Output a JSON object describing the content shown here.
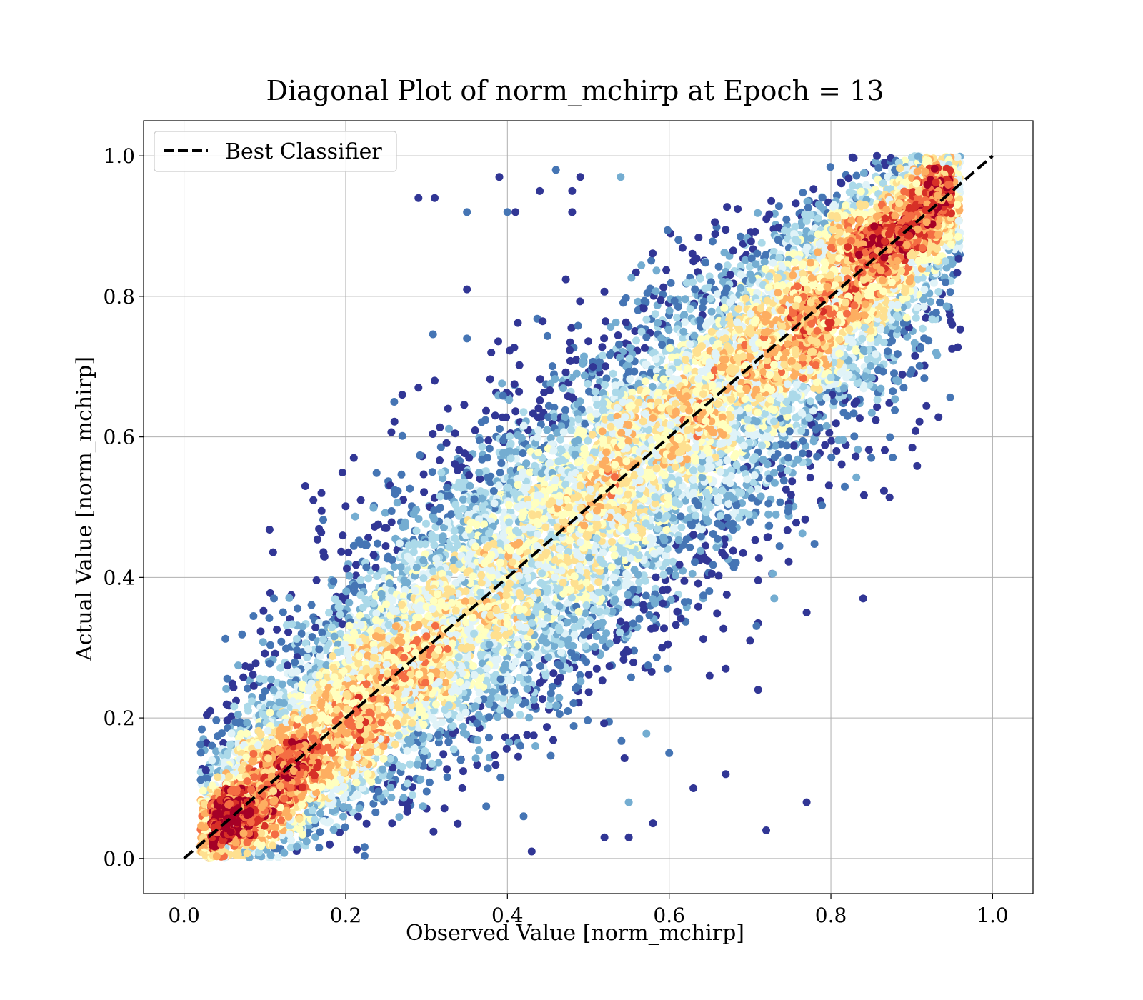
{
  "chart_data": {
    "type": "scatter",
    "title": "Diagonal Plot of norm_mchirp at Epoch = 13",
    "xlabel": "Observed Value [norm_mchirp]",
    "ylabel": "Actual Value [norm_mchirp]",
    "xlim": [
      -0.05,
      1.05
    ],
    "ylim": [
      -0.05,
      1.05
    ],
    "xticks": [
      "0.0",
      "0.2",
      "0.4",
      "0.6",
      "0.8",
      "1.0"
    ],
    "yticks": [
      "0.0",
      "0.2",
      "0.4",
      "0.6",
      "0.8",
      "1.0"
    ],
    "grid": true,
    "colormap": "RdYlBu_r (point density)",
    "colormap_stops": [
      "#313695",
      "#4575b4",
      "#74add1",
      "#abd9e9",
      "#e0f3f8",
      "#ffffbf",
      "#fee090",
      "#fdae61",
      "#f46d43",
      "#d73027",
      "#a50026"
    ],
    "legend": {
      "position": "top-left",
      "entries": [
        "Best Classifier"
      ]
    },
    "reference_line": {
      "name": "Best Classifier",
      "style": "dashed",
      "color": "#000000",
      "from": [
        0.0,
        0.0
      ],
      "to": [
        1.0,
        1.0
      ]
    },
    "scatter": {
      "points_visible": "approximately 12000",
      "spread_around_diagonal_sd": 0.065,
      "x_range_visible": [
        0.02,
        0.96
      ],
      "y_range_visible": [
        0.0,
        1.0
      ],
      "outliers": [
        [
          0.39,
          0.97
        ],
        [
          0.46,
          0.98
        ],
        [
          0.29,
          0.94
        ],
        [
          0.31,
          0.94
        ],
        [
          0.35,
          0.92
        ],
        [
          0.4,
          0.92
        ],
        [
          0.41,
          0.92
        ],
        [
          0.44,
          0.95
        ],
        [
          0.48,
          0.95
        ],
        [
          0.49,
          0.97
        ],
        [
          0.54,
          0.97
        ],
        [
          0.48,
          0.92
        ],
        [
          0.15,
          0.53
        ],
        [
          0.16,
          0.51
        ],
        [
          0.17,
          0.52
        ],
        [
          0.21,
          0.57
        ],
        [
          0.26,
          0.65
        ],
        [
          0.27,
          0.66
        ],
        [
          0.29,
          0.67
        ],
        [
          0.31,
          0.68
        ],
        [
          0.35,
          0.74
        ],
        [
          0.35,
          0.81
        ],
        [
          0.38,
          0.72
        ],
        [
          0.95,
          0.76
        ],
        [
          0.93,
          0.72
        ],
        [
          0.89,
          0.67
        ],
        [
          0.85,
          0.57
        ],
        [
          0.84,
          0.37
        ],
        [
          0.77,
          0.35
        ],
        [
          0.73,
          0.37
        ],
        [
          0.71,
          0.24
        ],
        [
          0.7,
          0.31
        ],
        [
          0.67,
          0.27
        ],
        [
          0.65,
          0.26
        ],
        [
          0.72,
          0.04
        ],
        [
          0.77,
          0.08
        ],
        [
          0.63,
          0.1
        ],
        [
          0.67,
          0.12
        ],
        [
          0.6,
          0.15
        ],
        [
          0.58,
          0.05
        ],
        [
          0.55,
          0.03
        ],
        [
          0.52,
          0.03
        ],
        [
          0.43,
          0.01
        ],
        [
          0.42,
          0.06
        ],
        [
          0.55,
          0.08
        ]
      ]
    }
  }
}
